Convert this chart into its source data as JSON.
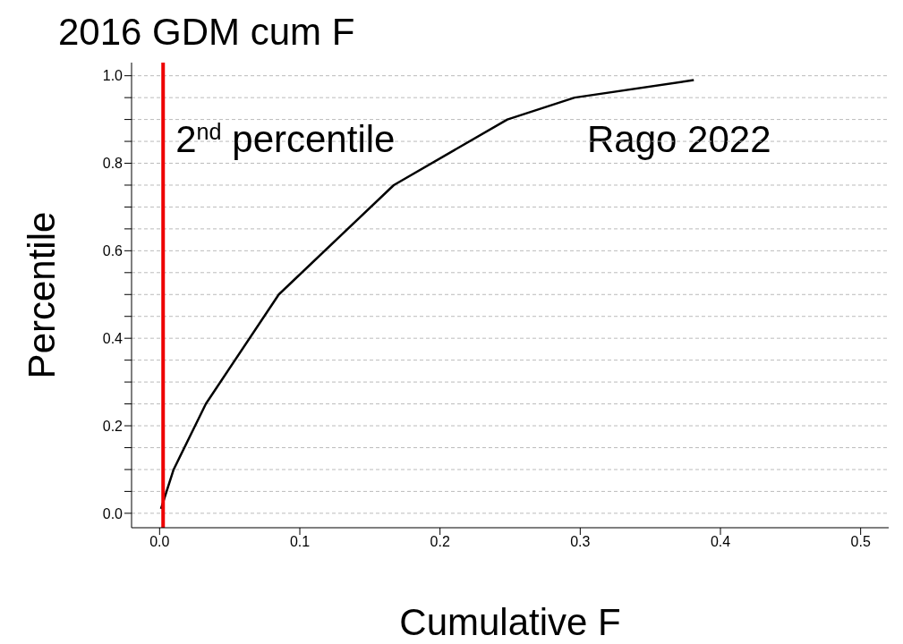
{
  "chart_data": {
    "type": "line",
    "title": "2016 GDM cum F",
    "xlabel": "Cumulative F",
    "ylabel": "Percentile",
    "x": [
      0.001,
      0.01,
      0.033,
      0.085,
      0.167,
      0.248,
      0.296,
      0.381
    ],
    "series": [
      {
        "color": "#000000",
        "values": [
          0.01,
          0.1,
          0.25,
          0.5,
          0.75,
          0.9,
          0.95,
          0.99
        ]
      }
    ],
    "xlim": [
      -0.02,
      0.52
    ],
    "xticks": [
      {
        "value": 0,
        "label": "0.0"
      },
      0.1,
      0.2,
      0.3,
      0.4,
      0.5
    ],
    "ylim": [
      -0.033,
      1.03
    ],
    "yticks": [
      {
        "value": 0,
        "label": "0.0"
      },
      {
        "value": 0.05,
        "label": null
      },
      {
        "value": 0.1,
        "label": null
      },
      {
        "value": 0.15,
        "label": null
      },
      0.2,
      {
        "value": 0.25,
        "label": null
      },
      {
        "value": 0.3,
        "label": null
      },
      {
        "value": 0.35,
        "label": null
      },
      0.4,
      {
        "value": 0.45,
        "label": null
      },
      {
        "value": 0.5,
        "label": null
      },
      {
        "value": 0.55,
        "label": null
      },
      0.6,
      {
        "value": 0.65,
        "label": null
      },
      {
        "value": 0.7,
        "label": null
      },
      {
        "value": 0.75,
        "label": null
      },
      0.8,
      {
        "value": 0.85,
        "label": null
      },
      {
        "value": 0.9,
        "label": null
      },
      {
        "value": 0.95,
        "label": null
      },
      {
        "value": 1,
        "label": "1.0"
      }
    ],
    "grid": "y",
    "marker": "none",
    "line_style": "solid",
    "legend": false,
    "ref_lines": [
      {
        "axis": "x",
        "value": 0.0025,
        "label": "2$^{nd}$ percentile",
        "color": "#ee0000"
      }
    ],
    "annotations": [
      "Rago 2022"
    ]
  }
}
